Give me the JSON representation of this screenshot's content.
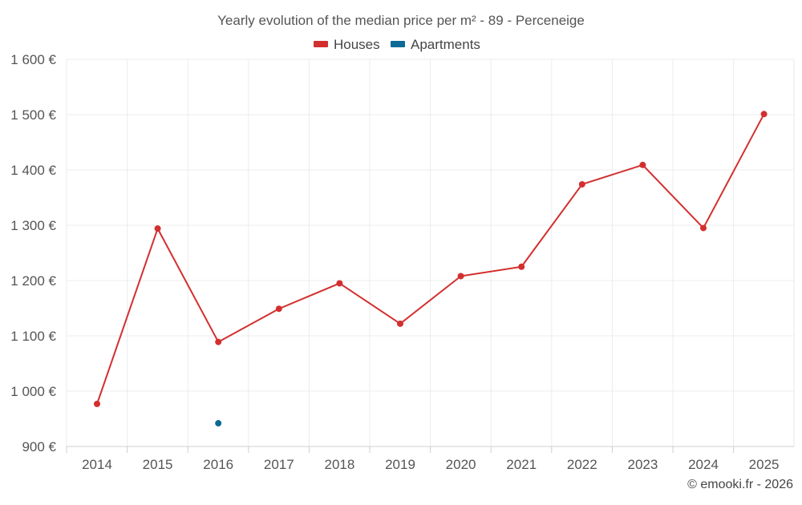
{
  "chart_data": {
    "type": "line",
    "title": "Yearly evolution of the median price per m² - 89 - Perceneige",
    "x": [
      "2014",
      "2015",
      "2016",
      "2017",
      "2018",
      "2019",
      "2020",
      "2021",
      "2022",
      "2023",
      "2024",
      "2025"
    ],
    "ylim": [
      900,
      1600
    ],
    "y_ticks": [
      900,
      1000,
      1100,
      1200,
      1300,
      1400,
      1500,
      1600
    ],
    "y_tick_labels": [
      "900 €",
      "1 000 €",
      "1 100 €",
      "1 200 €",
      "1 300 €",
      "1 400 €",
      "1 500 €",
      "1 600 €"
    ],
    "grid": true,
    "legend_position": "top-center",
    "series": [
      {
        "name": "Houses",
        "color": "#d32f2f",
        "values": [
          977,
          1294,
          1089,
          1149,
          1195,
          1122,
          1208,
          1225,
          1374,
          1409,
          1295,
          1501
        ]
      },
      {
        "name": "Apartments",
        "color": "#0b6a96",
        "values": [
          null,
          null,
          942,
          null,
          null,
          null,
          null,
          null,
          null,
          null,
          null,
          null
        ]
      }
    ],
    "credit": "© emooki.fr - 2026"
  }
}
